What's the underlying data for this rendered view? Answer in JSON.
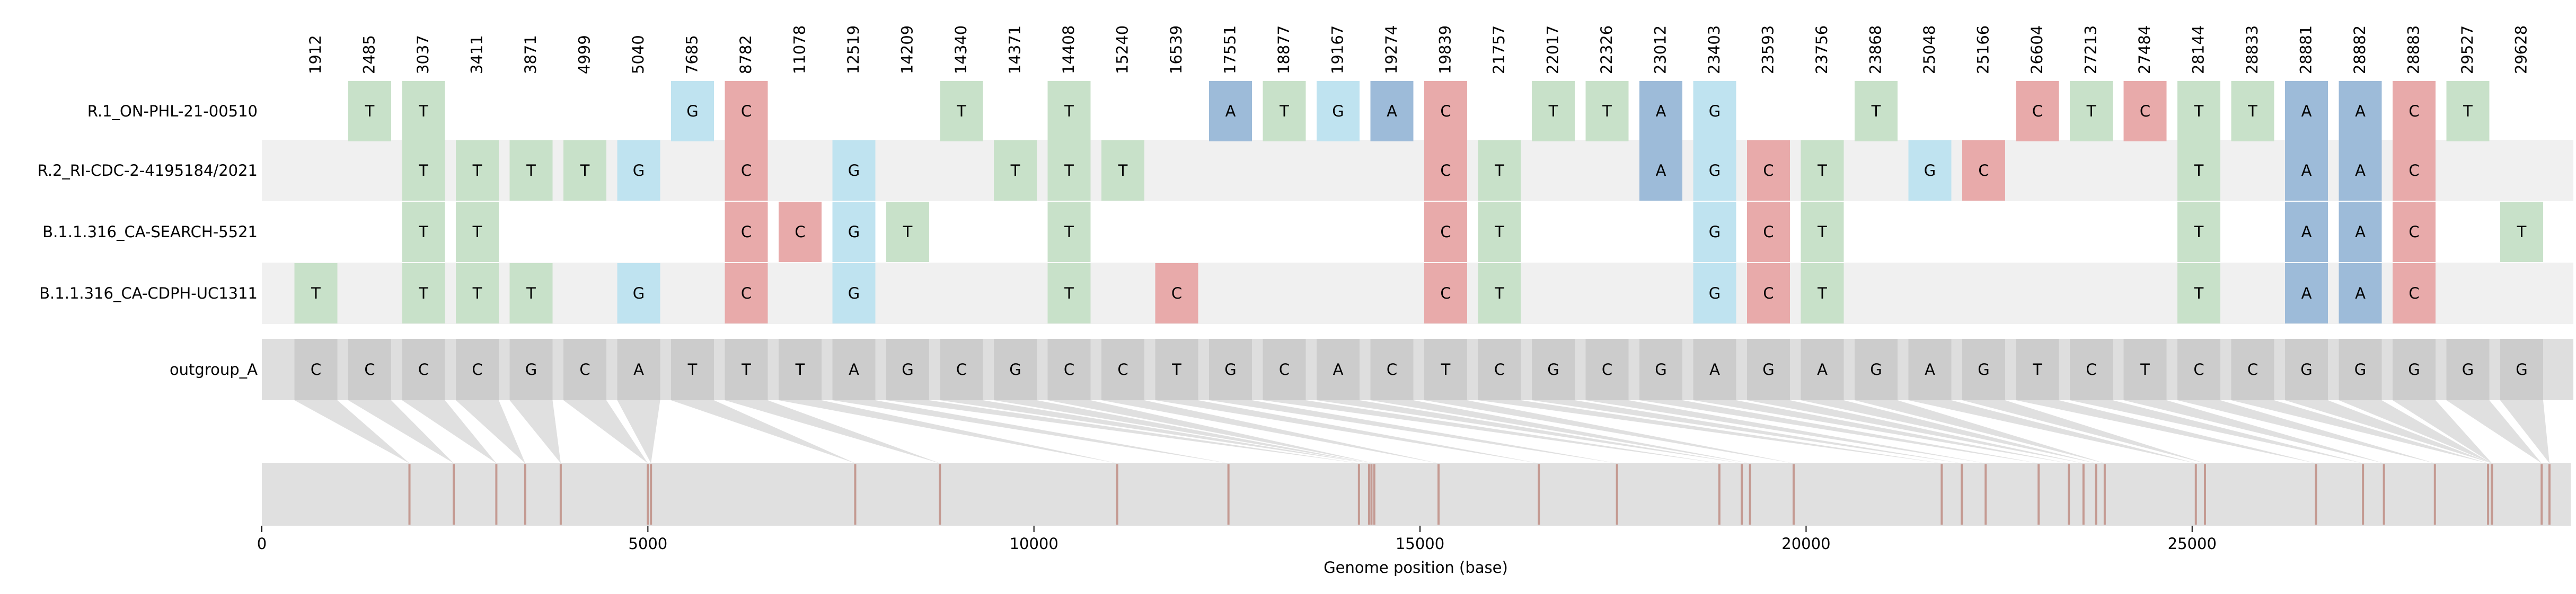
{
  "chart_data": {
    "type": "heatmap",
    "title": "",
    "xlabel": "Genome position (base)",
    "xlim": [
      0,
      29903
    ],
    "x_ticks": [
      0,
      5000,
      10000,
      15000,
      20000,
      25000
    ],
    "grid": false,
    "legend": "none",
    "positions": [
      1912,
      2485,
      3037,
      3411,
      3871,
      4999,
      5040,
      7685,
      8782,
      11078,
      12519,
      14209,
      14340,
      14371,
      14408,
      15240,
      16539,
      17551,
      18877,
      19167,
      19274,
      19839,
      21757,
      22017,
      22326,
      23012,
      23403,
      23593,
      23756,
      23868,
      25048,
      25166,
      26604,
      27213,
      27484,
      28144,
      28833,
      28881,
      28882,
      28883,
      29527,
      29628
    ],
    "sequences": [
      {
        "name": "R.1_ON-PHL-21-00510",
        "bases": [
          "",
          "T",
          "T",
          "",
          "",
          "",
          "",
          "G",
          "C",
          "",
          "",
          "",
          "T",
          "",
          "T",
          "",
          "",
          "A",
          "T",
          "G",
          "A",
          "C",
          "",
          "T",
          "T",
          "A",
          "G",
          "",
          "",
          "T",
          "",
          "",
          "C",
          "T",
          "C",
          "T",
          "T",
          "A",
          "A",
          "C",
          "T",
          ""
        ]
      },
      {
        "name": "R.2_RI-CDC-2-4195184/2021",
        "bases": [
          "",
          "",
          "T",
          "T",
          "T",
          "T",
          "G",
          "",
          "C",
          "",
          "G",
          "",
          "",
          "T",
          "T",
          "T",
          "",
          "",
          "",
          "",
          "",
          "C",
          "T",
          "",
          "",
          "A",
          "G",
          "C",
          "T",
          "",
          "G",
          "C",
          "",
          "",
          "",
          "T",
          "",
          "A",
          "A",
          "C",
          "",
          ""
        ]
      },
      {
        "name": "B.1.1.316_CA-SEARCH-5521",
        "bases": [
          "",
          "",
          "T",
          "T",
          "",
          "",
          "",
          "",
          "C",
          "C",
          "G",
          "T",
          "",
          "",
          "T",
          "",
          "",
          "",
          "",
          "",
          "",
          "C",
          "T",
          "",
          "",
          "",
          "G",
          "C",
          "T",
          "",
          "",
          "",
          "",
          "",
          "",
          "T",
          "",
          "A",
          "A",
          "C",
          "",
          "T"
        ]
      },
      {
        "name": "B.1.1.316_CA-CDPH-UC1311",
        "bases": [
          "T",
          "",
          "T",
          "T",
          "T",
          "",
          "G",
          "",
          "C",
          "",
          "G",
          "",
          "",
          "",
          "T",
          "",
          "C",
          "",
          "",
          "",
          "",
          "C",
          "T",
          "",
          "",
          "",
          "G",
          "C",
          "T",
          "",
          "",
          "",
          "",
          "",
          "",
          "T",
          "",
          "A",
          "A",
          "C",
          "",
          ""
        ]
      }
    ],
    "reference": {
      "name": "outgroup_A",
      "bases": [
        "C",
        "C",
        "C",
        "C",
        "G",
        "C",
        "A",
        "T",
        "T",
        "T",
        "A",
        "G",
        "C",
        "G",
        "C",
        "C",
        "T",
        "G",
        "C",
        "A",
        "C",
        "T",
        "C",
        "G",
        "C",
        "G",
        "A",
        "G",
        "A",
        "G",
        "A",
        "G",
        "T",
        "C",
        "T",
        "C",
        "C",
        "G",
        "G",
        "G",
        "G",
        "G"
      ]
    },
    "base_colors": {
      "A": "#9dbbd9",
      "C": "#e8aaaa",
      "G": "#bfe3f0",
      "T": "#c8e1c9"
    },
    "marker_color": "#c49a92"
  }
}
